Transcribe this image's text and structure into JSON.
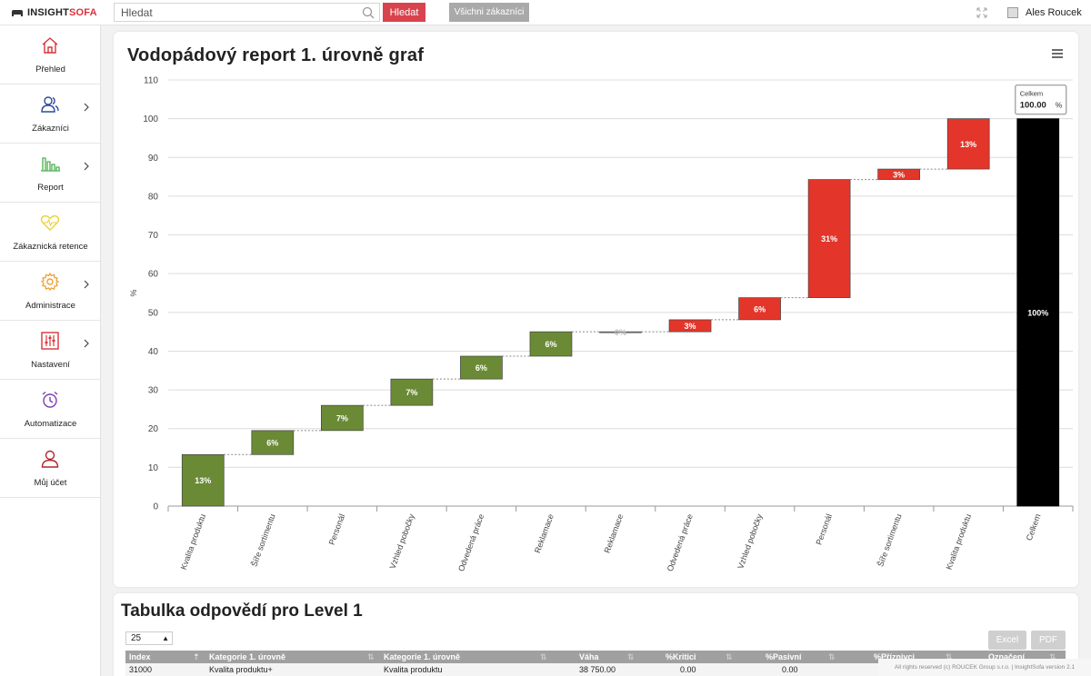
{
  "brand": {
    "part1": "INSIGHT",
    "part2": "SOFA"
  },
  "search": {
    "placeholder": "Hledat",
    "button": "Hledat"
  },
  "all_customers_button": "Všichni zákazníci",
  "user": {
    "name": "Ales Roucek"
  },
  "sidebar": {
    "items": [
      {
        "label": "Přehled",
        "icon": "home-icon",
        "color": "#d9323a",
        "chevron": false
      },
      {
        "label": "Zákazníci",
        "icon": "users-icon",
        "color": "#2c4a9a",
        "chevron": true
      },
      {
        "label": "Report",
        "icon": "bar-chart-icon",
        "color": "#4caf50",
        "chevron": true
      },
      {
        "label": "Zákaznická retence",
        "icon": "heart-icon",
        "color": "#e8d23b",
        "chevron": false
      },
      {
        "label": "Administrace",
        "icon": "gear-icon",
        "color": "#f0a030",
        "chevron": true
      },
      {
        "label": "Nastavení",
        "icon": "sliders-icon",
        "color": "#d9323a",
        "chevron": true
      },
      {
        "label": "Automatizace",
        "icon": "alarm-clock-icon",
        "color": "#7b3fb3",
        "chevron": false
      },
      {
        "label": "Můj účet",
        "icon": "user-icon",
        "color": "#b0262d",
        "chevron": false
      }
    ]
  },
  "chart_card": {
    "title": "Vodopádový report 1. úrovně graf"
  },
  "chart_data": {
    "type": "bar",
    "subtype": "waterfall",
    "title": "Vodopádový report 1. úrovně graf",
    "ylabel": "%",
    "ylim": [
      0,
      110
    ],
    "yticks": [
      0,
      10,
      20,
      30,
      40,
      50,
      60,
      70,
      80,
      90,
      100,
      110
    ],
    "grid": true,
    "colors": {
      "positive": "#6b8a35",
      "negative": "#e3352a",
      "neutral": "#aaaaaa",
      "total": "#000000"
    },
    "categories": [
      "Kvalita produktu",
      "Šíře sortimentu",
      "Personál",
      "Vzhled pobočky",
      "Odvedená práce",
      "Reklamace",
      "Reklamace",
      "Odvedená práce",
      "Vzhled pobočky",
      "Personál",
      "Šíře sortimentu",
      "Kvalita produktu",
      "Celkem"
    ],
    "bars": [
      {
        "start": 0,
        "end": 13.3,
        "label": "13%",
        "kind": "positive"
      },
      {
        "start": 13.3,
        "end": 19.5,
        "label": "6%",
        "kind": "positive"
      },
      {
        "start": 19.5,
        "end": 26.0,
        "label": "7%",
        "kind": "positive"
      },
      {
        "start": 26.0,
        "end": 32.8,
        "label": "7%",
        "kind": "positive"
      },
      {
        "start": 32.8,
        "end": 38.7,
        "label": "6%",
        "kind": "positive"
      },
      {
        "start": 38.7,
        "end": 45.0,
        "label": "6%",
        "kind": "positive"
      },
      {
        "start": 45.0,
        "end": 45.0,
        "label": "0%",
        "kind": "neutral"
      },
      {
        "start": 45.0,
        "end": 48.1,
        "label": "3%",
        "kind": "negative"
      },
      {
        "start": 48.1,
        "end": 53.8,
        "label": "6%",
        "kind": "negative"
      },
      {
        "start": 53.8,
        "end": 84.3,
        "label": "31%",
        "kind": "negative"
      },
      {
        "start": 84.3,
        "end": 87.0,
        "label": "3%",
        "kind": "negative"
      },
      {
        "start": 87.0,
        "end": 100.0,
        "label": "13%",
        "kind": "negative"
      },
      {
        "start": 0,
        "end": 100.0,
        "label": "100%",
        "kind": "total"
      }
    ],
    "tooltip": {
      "title": "Celkem",
      "value": "100.00",
      "unit": "%"
    }
  },
  "table_card": {
    "title": "Tabulka odpovědí pro Level 1",
    "page_size": "25",
    "export_excel": "Excel",
    "export_pdf": "PDF",
    "columns": [
      "Index",
      "Kategorie 1. úrovně",
      "Kategorie 1. úrovně",
      "Váha",
      "%Kritici",
      "%Pasivní",
      "%Příznivci",
      "Označení"
    ],
    "rows": [
      [
        "31000",
        "Kvalita produktu+",
        "Kvalita produktu",
        "38 750.00",
        "0.00",
        "0.00",
        "",
        ""
      ]
    ]
  },
  "footer": "All rights reserved (c) ROUCEK Group s.r.o. | InsightSofa version 2.1"
}
